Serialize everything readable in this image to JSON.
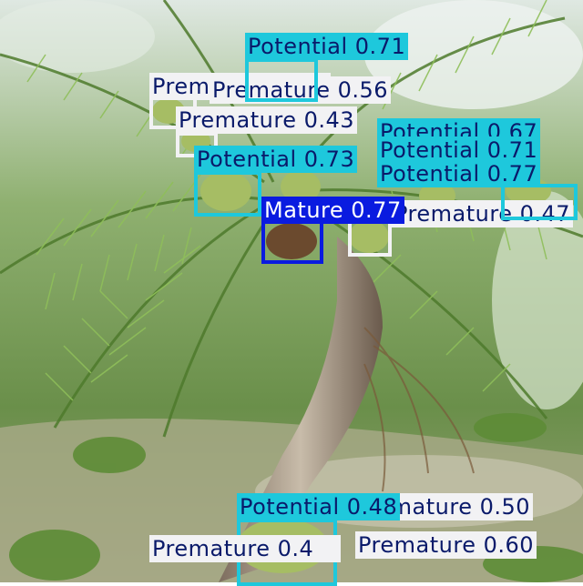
{
  "image": {
    "description_colors": {
      "sky": "#e9eef0",
      "palm_leaf": "#7fa64a",
      "trunk": "#9a8a78",
      "ground": "#b8b2a0"
    }
  },
  "classes": {
    "potential": {
      "name": "Potential",
      "color": "#1ec8dc",
      "text_color": "#0a1a6a"
    },
    "premature": {
      "name": "Premature",
      "color": "#f2f2f4",
      "text_color": "#0a1a6a"
    },
    "mature": {
      "name": "Mature",
      "color": "#0a1be0",
      "text_color": "#ffffff"
    }
  },
  "detections": [
    {
      "class": "Premature",
      "text": "Premature 0.47"
    },
    {
      "class": "Premature",
      "text": "Premature 0.56"
    },
    {
      "class": "Potential",
      "text": "Potential 0.71"
    },
    {
      "class": "Premature",
      "text": "Premature 0.43"
    },
    {
      "class": "Potential",
      "text": "Potential 0.67"
    },
    {
      "class": "Potential",
      "text": "Potential 0.71"
    },
    {
      "class": "Premature",
      "text": "Premature 0.47"
    },
    {
      "class": "Potential",
      "text": "Potential 0.77"
    },
    {
      "class": "Potential",
      "text": "Potential 0.73"
    },
    {
      "class": "Mature",
      "text": "Mature 0.77"
    },
    {
      "class": "Premature",
      "text": "Premature 0.50"
    },
    {
      "class": "Potential",
      "text": "Potential 0.48"
    },
    {
      "class": "Premature",
      "text": "Premature 0.4"
    },
    {
      "class": "Premature",
      "text": "Premature 0.60"
    }
  ]
}
